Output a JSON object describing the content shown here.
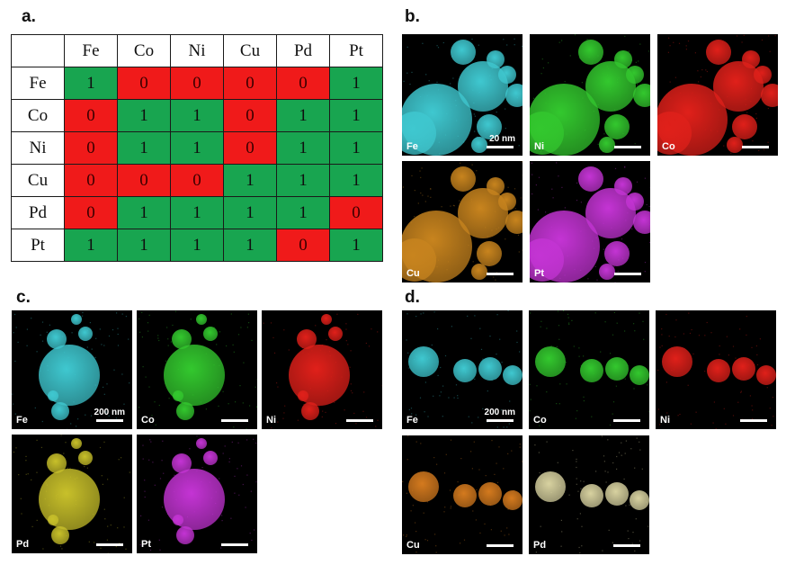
{
  "panels": {
    "a": "a.",
    "b": "b.",
    "c": "c.",
    "d": "d."
  },
  "matrix": {
    "columns": [
      "Fe",
      "Co",
      "Ni",
      "Cu",
      "Pd",
      "Pt"
    ],
    "rows": [
      {
        "label": "Fe",
        "values": [
          "1",
          "0",
          "0",
          "0",
          "0",
          "1"
        ]
      },
      {
        "label": "Co",
        "values": [
          "0",
          "1",
          "1",
          "0",
          "1",
          "1"
        ]
      },
      {
        "label": "Ni",
        "values": [
          "0",
          "1",
          "1",
          "0",
          "1",
          "1"
        ]
      },
      {
        "label": "Cu",
        "values": [
          "0",
          "0",
          "0",
          "1",
          "1",
          "1"
        ]
      },
      {
        "label": "Pd",
        "values": [
          "0",
          "1",
          "1",
          "1",
          "1",
          "0"
        ]
      },
      {
        "label": "Pt",
        "values": [
          "1",
          "1",
          "1",
          "1",
          "0",
          "1"
        ]
      }
    ]
  },
  "maps_b": [
    {
      "element": "Fe",
      "color": "#3fc8d0",
      "scale_text": "20 nm"
    },
    {
      "element": "Ni",
      "color": "#33c82e",
      "scale_text": ""
    },
    {
      "element": "Co",
      "color": "#e0201a",
      "scale_text": ""
    },
    {
      "element": "Cu",
      "color": "#c8841e",
      "scale_text": ""
    },
    {
      "element": "Pt",
      "color": "#c434d4",
      "scale_text": ""
    }
  ],
  "maps_c": [
    {
      "element": "Fe",
      "color": "#3fc8d0",
      "scale_text": "200 nm"
    },
    {
      "element": "Co",
      "color": "#33c82e",
      "scale_text": ""
    },
    {
      "element": "Ni",
      "color": "#e0201a",
      "scale_text": ""
    },
    {
      "element": "Pd",
      "color": "#c8c02a",
      "scale_text": ""
    },
    {
      "element": "Pt",
      "color": "#c434d4",
      "scale_text": ""
    }
  ],
  "maps_d": [
    {
      "element": "Fe",
      "color": "#3fc8d0",
      "scale_text": "200 nm"
    },
    {
      "element": "Co",
      "color": "#33c82e",
      "scale_text": ""
    },
    {
      "element": "Ni",
      "color": "#e0201a",
      "scale_text": ""
    },
    {
      "element": "Cu",
      "color": "#d47a1e",
      "scale_text": ""
    },
    {
      "element": "Pd",
      "color": "#d8d2a0",
      "scale_text": ""
    }
  ]
}
